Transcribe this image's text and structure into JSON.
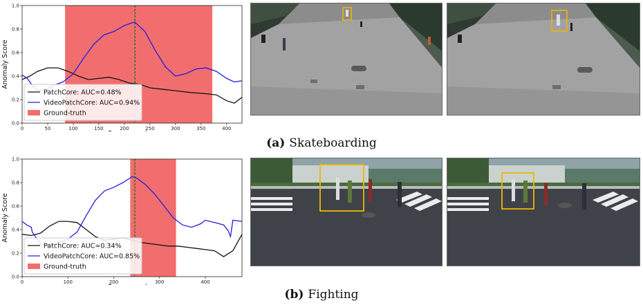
{
  "captions": [
    {
      "tag": "(a)",
      "text": "Skateboarding"
    },
    {
      "tag": "(b)",
      "text": "Fighting"
    }
  ],
  "colors": {
    "patchcore": "#111111",
    "videopatchcore": "#1f1fe0",
    "groundtruth": "#f26e6e",
    "marker": "#2f8f2f",
    "bbox": "#f2b600"
  },
  "chart_data": [
    {
      "type": "line",
      "xlabel": "Frame number",
      "ylabel": "Anomaly Score",
      "xlim": [
        0,
        430
      ],
      "ylim": [
        0,
        1.0
      ],
      "xticks": [
        0,
        50,
        100,
        150,
        200,
        250,
        300,
        350,
        400
      ],
      "yticks": [
        0.0,
        0.2,
        0.4,
        0.6,
        0.8,
        1.0
      ],
      "xtick_labels": [
        "0",
        "50",
        "100",
        "150",
        "200",
        "250",
        "300",
        "350",
        "400"
      ],
      "ytick_labels": [
        "0.0",
        "0.2",
        "0.4",
        "0.6",
        "0.8",
        "1.0"
      ],
      "ground_truth": [
        84,
        372
      ],
      "marker": 220,
      "legend": "bottom-left",
      "legend_items": [
        {
          "label": "PatchCore: AUC=0.48%",
          "kind": "line",
          "color": "#111111"
        },
        {
          "label": "VideoPatchCore: AUC=0.94%",
          "kind": "line",
          "color": "#1f1fe0"
        },
        {
          "label": "Ground-truth",
          "kind": "patch",
          "color": "#f26e6e"
        }
      ],
      "series": [
        {
          "name": "PatchCore",
          "color": "#111111",
          "x": [
            0,
            15,
            30,
            50,
            70,
            90,
            110,
            130,
            150,
            170,
            190,
            210,
            230,
            250,
            270,
            290,
            310,
            330,
            360,
            380,
            400,
            415,
            430
          ],
          "y": [
            0.37,
            0.4,
            0.44,
            0.47,
            0.47,
            0.44,
            0.4,
            0.37,
            0.38,
            0.39,
            0.37,
            0.34,
            0.33,
            0.3,
            0.29,
            0.28,
            0.27,
            0.26,
            0.25,
            0.24,
            0.19,
            0.17,
            0.22
          ]
        },
        {
          "name": "VideoPatchCore",
          "color": "#1f1fe0",
          "x": [
            0,
            10,
            20,
            30,
            45,
            60,
            80,
            100,
            120,
            140,
            160,
            180,
            200,
            220,
            240,
            260,
            280,
            300,
            320,
            340,
            360,
            380,
            400,
            415,
            430
          ],
          "y": [
            0.41,
            0.38,
            0.32,
            0.28,
            0.28,
            0.32,
            0.35,
            0.42,
            0.55,
            0.67,
            0.75,
            0.78,
            0.83,
            0.86,
            0.78,
            0.62,
            0.48,
            0.4,
            0.42,
            0.46,
            0.47,
            0.44,
            0.38,
            0.35,
            0.36
          ]
        }
      ]
    },
    {
      "type": "line",
      "xlabel": "Frame number",
      "ylabel": "Anomaly Score",
      "xlim": [
        0,
        480
      ],
      "ylim": [
        0,
        1.0
      ],
      "xticks": [
        0,
        100,
        200,
        300,
        400
      ],
      "yticks": [
        0.0,
        0.2,
        0.4,
        0.6,
        0.8,
        1.0
      ],
      "xtick_labels": [
        "0",
        "100",
        "200",
        "300",
        "400"
      ],
      "ytick_labels": [
        "0.0",
        "0.2",
        "0.4",
        "0.6",
        "0.8",
        "1.0"
      ],
      "ground_truth": [
        236,
        336
      ],
      "marker": 245,
      "legend": "bottom-left",
      "legend_items": [
        {
          "label": "PatchCore: AUC=0.34%",
          "kind": "line",
          "color": "#111111"
        },
        {
          "label": "VideoPatchCore: AUC=0.85%",
          "kind": "line",
          "color": "#1f1fe0"
        },
        {
          "label": "Ground-truth",
          "kind": "patch",
          "color": "#f26e6e"
        }
      ],
      "series": [
        {
          "name": "PatchCore",
          "color": "#111111",
          "x": [
            0,
            20,
            40,
            60,
            80,
            100,
            120,
            140,
            160,
            180,
            200,
            220,
            240,
            260,
            280,
            300,
            320,
            340,
            360,
            380,
            400,
            420,
            440,
            460,
            480
          ],
          "y": [
            0.36,
            0.35,
            0.37,
            0.43,
            0.47,
            0.47,
            0.46,
            0.4,
            0.34,
            0.31,
            0.32,
            0.33,
            0.31,
            0.29,
            0.28,
            0.27,
            0.26,
            0.26,
            0.25,
            0.24,
            0.23,
            0.22,
            0.17,
            0.22,
            0.36
          ]
        },
        {
          "name": "VideoPatchCore",
          "color": "#1f1fe0",
          "x": [
            0,
            10,
            20,
            22,
            40,
            60,
            80,
            100,
            120,
            140,
            160,
            180,
            200,
            220,
            240,
            250,
            270,
            290,
            310,
            330,
            350,
            370,
            390,
            400,
            420,
            440,
            450,
            455,
            460,
            480
          ],
          "y": [
            0.47,
            0.44,
            0.42,
            0.38,
            0.28,
            0.26,
            0.29,
            0.32,
            0.38,
            0.52,
            0.65,
            0.73,
            0.76,
            0.8,
            0.85,
            0.84,
            0.78,
            0.7,
            0.6,
            0.5,
            0.44,
            0.42,
            0.45,
            0.48,
            0.46,
            0.44,
            0.39,
            0.34,
            0.48,
            0.47
          ]
        }
      ]
    }
  ]
}
